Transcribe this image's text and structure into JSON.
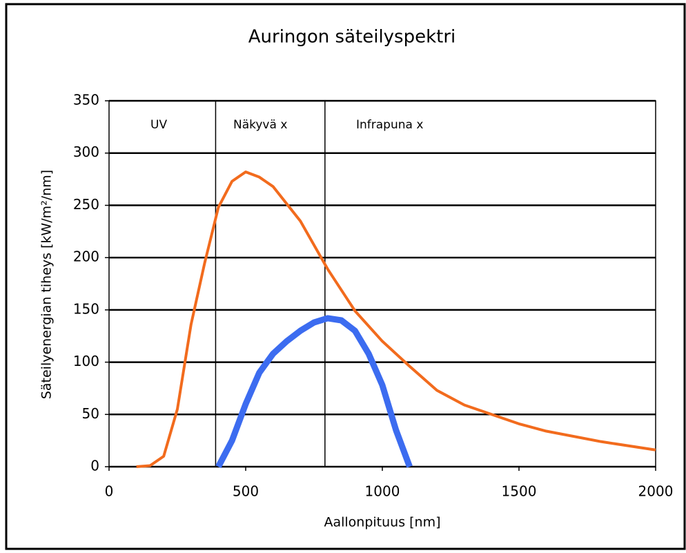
{
  "chart_data": {
    "type": "line",
    "title": "Auringon säteilyspektri",
    "xlabel": "Aallonpituus [nm]",
    "ylabel": "Säteilyenergian tiheys [kW/m²/nm]",
    "annotations": [
      "UV",
      "Näkyvä x",
      "Infrapuna x"
    ],
    "region_boundaries": [
      390,
      790
    ],
    "xlim": [
      0,
      2000
    ],
    "xticks": [
      0,
      500,
      1000,
      1500,
      2000
    ],
    "ylim": [
      0,
      350
    ],
    "yticks": [
      0,
      50,
      100,
      150,
      200,
      250,
      300,
      350
    ],
    "grid": true,
    "series": [
      {
        "color": "#f26b1d",
        "x": [
          100,
          150,
          200,
          250,
          300,
          350,
          400,
          450,
          500,
          550,
          600,
          700,
          800,
          900,
          1000,
          1100,
          1200,
          1300,
          1400,
          1500,
          1600,
          1800,
          2000
        ],
        "values": [
          0,
          1,
          10,
          55,
          136,
          195,
          248,
          273,
          282,
          277,
          268,
          235,
          189,
          149,
          120,
          96,
          73,
          59,
          50,
          41,
          34,
          24,
          16
        ]
      },
      {
        "color": "#3c6cf0",
        "x": [
          400,
          450,
          500,
          550,
          600,
          650,
          700,
          750,
          800,
          850,
          900,
          950,
          1000,
          1050,
          1100
        ],
        "values": [
          0,
          25,
          60,
          90,
          108,
          120,
          130,
          138,
          142,
          140,
          130,
          108,
          78,
          35,
          0
        ]
      }
    ]
  }
}
